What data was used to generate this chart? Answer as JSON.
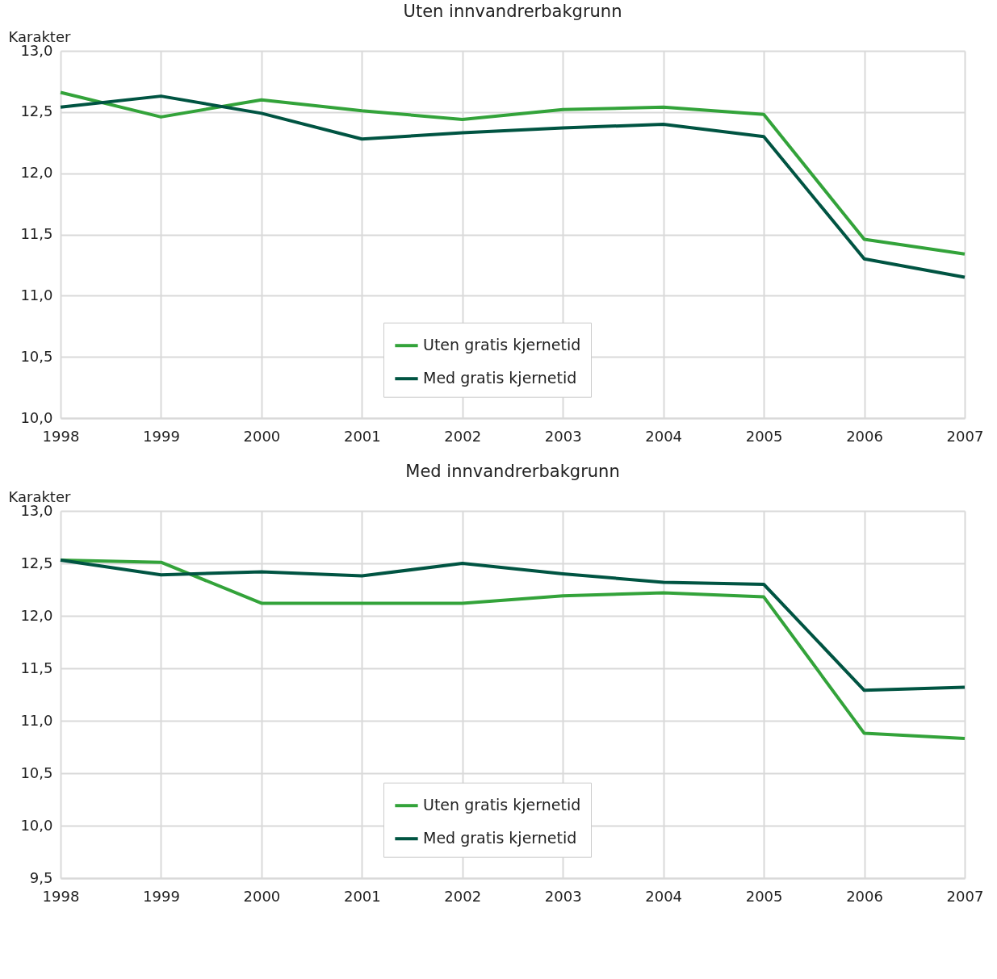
{
  "chart_data": [
    {
      "type": "line",
      "title": "Uten innvandrerbakgrunn",
      "ylabel": "Karakter",
      "x": [
        1998,
        1999,
        2000,
        2001,
        2002,
        2003,
        2004,
        2005,
        2006,
        2007
      ],
      "series": [
        {
          "name": "Uten gratis kjernetid",
          "color": "#33a33a",
          "values": [
            12.66,
            12.46,
            12.6,
            12.51,
            12.44,
            12.52,
            12.54,
            12.48,
            11.46,
            11.34
          ]
        },
        {
          "name": "Med gratis kjernetid",
          "color": "#005442",
          "values": [
            12.54,
            12.63,
            12.49,
            12.28,
            12.33,
            12.37,
            12.4,
            12.3,
            11.3,
            11.15
          ]
        }
      ],
      "xlim": [
        1998,
        2007
      ],
      "xticks": [
        1998,
        1999,
        2000,
        2001,
        2002,
        2003,
        2004,
        2005,
        2006,
        2007
      ],
      "ylim": [
        10,
        13
      ],
      "yticks": [
        {
          "value": 10,
          "label": "10,0"
        },
        {
          "value": 10.5,
          "label": "10,5"
        },
        {
          "value": 11,
          "label": "11,0"
        },
        {
          "value": 11.5,
          "label": "11,5"
        },
        {
          "value": 12,
          "label": "12,0"
        },
        {
          "value": 12.5,
          "label": "12,5"
        },
        {
          "value": 13,
          "label": "13,0"
        }
      ],
      "grid": true,
      "legend": "bottom",
      "line_style": "solid"
    },
    {
      "type": "line",
      "title": "Med innvandrerbakgrunn",
      "ylabel": "Karakter",
      "x": [
        1998,
        1999,
        2000,
        2001,
        2002,
        2003,
        2004,
        2005,
        2006,
        2007
      ],
      "series": [
        {
          "name": "Uten gratis kjernetid",
          "color": "#33a33a",
          "values": [
            12.53,
            12.51,
            12.12,
            12.12,
            12.12,
            12.19,
            12.22,
            12.18,
            10.88,
            10.83
          ]
        },
        {
          "name": "Med gratis kjernetid",
          "color": "#005442",
          "values": [
            12.53,
            12.39,
            12.42,
            12.38,
            12.5,
            12.4,
            12.32,
            12.3,
            11.29,
            11.32
          ]
        }
      ],
      "xlim": [
        1998,
        2007
      ],
      "xticks": [
        1998,
        1999,
        2000,
        2001,
        2002,
        2003,
        2004,
        2005,
        2006,
        2007
      ],
      "ylim": [
        9.5,
        13
      ],
      "yticks": [
        {
          "value": 9.5,
          "label": "9,5"
        },
        {
          "value": 10,
          "label": "10,0"
        },
        {
          "value": 10.5,
          "label": "10,5"
        },
        {
          "value": 11,
          "label": "11,0"
        },
        {
          "value": 11.5,
          "label": "11,5"
        },
        {
          "value": 12,
          "label": "12,0"
        },
        {
          "value": 12.5,
          "label": "12,5"
        },
        {
          "value": 13,
          "label": "13,0"
        }
      ],
      "grid": true,
      "legend": "bottom",
      "line_style": "solid"
    }
  ]
}
